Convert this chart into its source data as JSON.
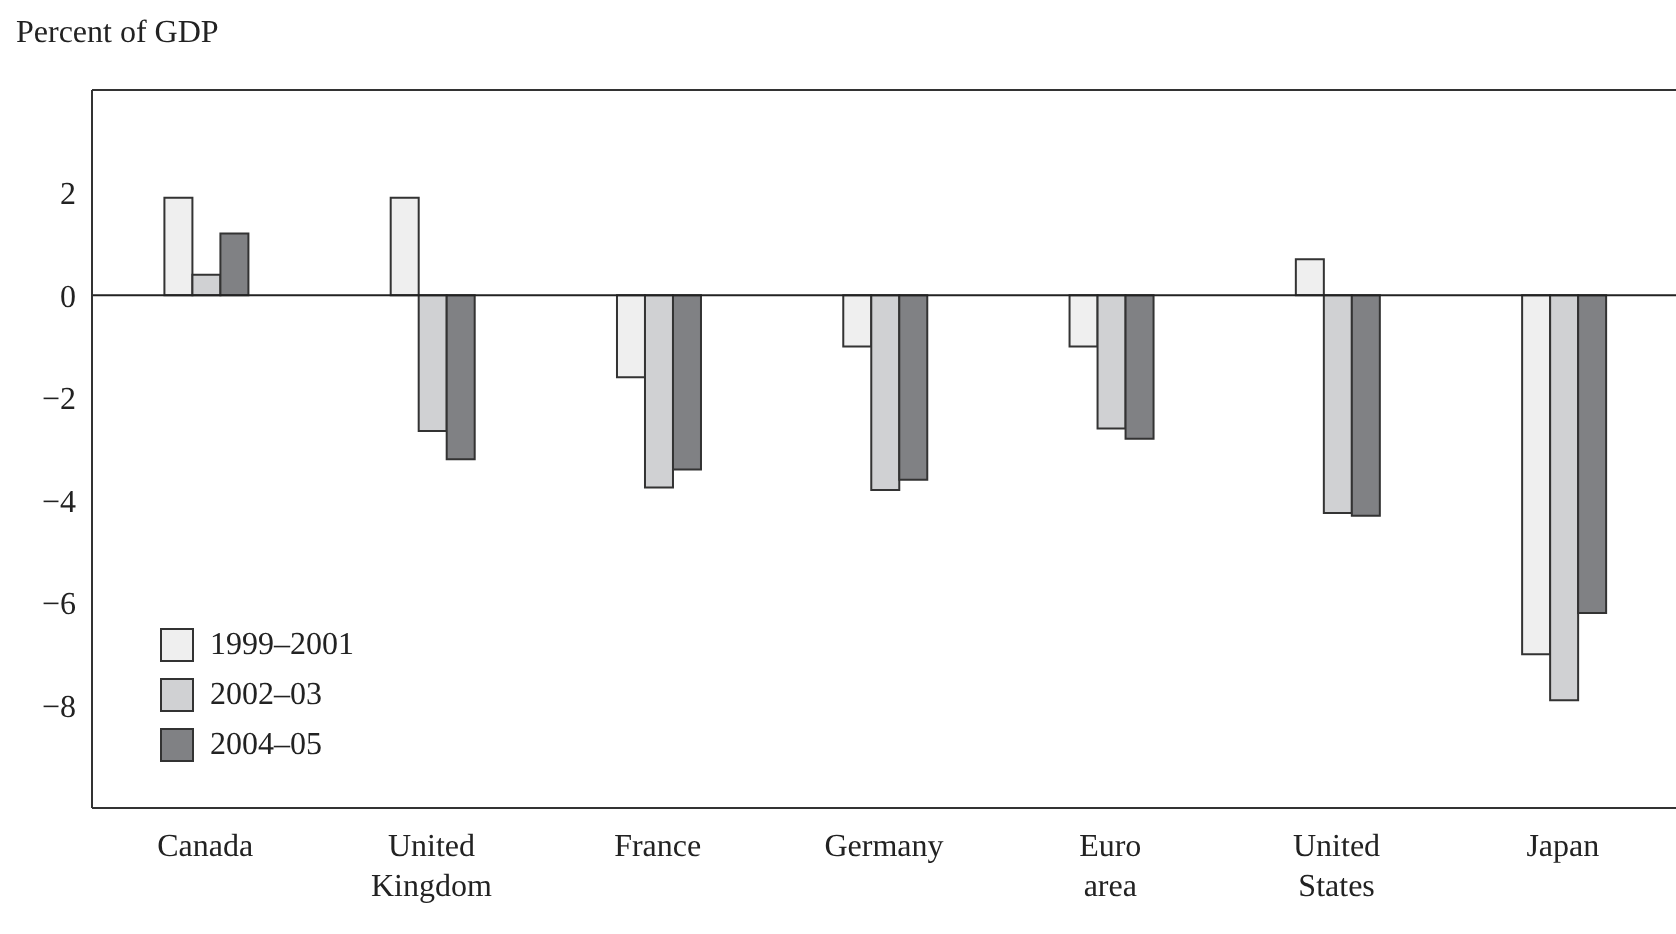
{
  "chart_data": {
    "type": "bar",
    "ylabel": "Percent of GDP",
    "categories": [
      "Canada",
      "United Kingdom",
      "France",
      "Germany",
      "Euro area",
      "United States",
      "Japan"
    ],
    "series": [
      {
        "name": "1999–2001",
        "color": "#efefef",
        "values": [
          1.9,
          1.9,
          -1.6,
          -1.0,
          -1.0,
          0.7,
          -7.0
        ]
      },
      {
        "name": "2002–03",
        "color": "#d0d1d3",
        "values": [
          0.4,
          -2.65,
          -3.75,
          -3.8,
          -2.6,
          -4.25,
          -7.9
        ]
      },
      {
        "name": "2004–05",
        "color": "#808184",
        "values": [
          1.2,
          -3.2,
          -3.4,
          -3.6,
          -2.8,
          -4.3,
          -6.2
        ]
      }
    ],
    "ylim": [
      -10,
      4
    ],
    "yticks": [
      -8,
      -6,
      -4,
      -2,
      0,
      2
    ],
    "ref_lines": [
      {
        "axis": "y",
        "value": 0,
        "label": null
      }
    ],
    "grid": false,
    "legend": "bottom left"
  }
}
